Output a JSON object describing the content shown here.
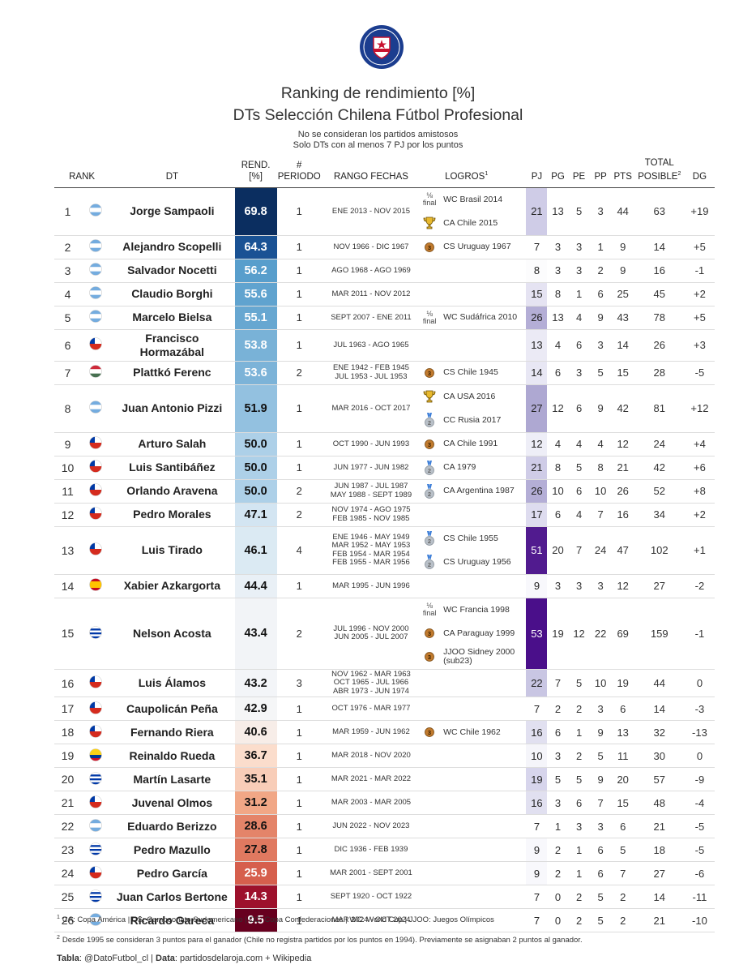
{
  "header": {
    "title": [
      "Ranking de rendimiento [%]",
      "DTs Selección Chilena Fútbol Profesional"
    ],
    "notes": [
      "No se consideran los partidos amistosos",
      "Solo DTs con al menos 7 PJ por los puntos"
    ]
  },
  "table": {
    "columns": [
      {
        "lines": [
          "RANK"
        ]
      },
      {
        "lines": [
          "DT"
        ]
      },
      {
        "lines": [
          "REND.",
          "[%]"
        ]
      },
      {
        "lines": [
          "#",
          "PERIODO"
        ]
      },
      {
        "lines": [
          "RANGO FECHAS"
        ]
      },
      {
        "lines": [
          "LOGROS"
        ],
        "sup": "1"
      },
      {
        "lines": [
          "PJ"
        ]
      },
      {
        "lines": [
          "PG"
        ]
      },
      {
        "lines": [
          "PE"
        ]
      },
      {
        "lines": [
          "PP"
        ]
      },
      {
        "lines": [
          "PTS"
        ]
      },
      {
        "lines": [
          "TOTAL",
          "POSIBLE"
        ],
        "sup": "2"
      },
      {
        "lines": [
          "DG"
        ]
      }
    ],
    "rows": [
      {
        "rank": 1,
        "flag": "ar",
        "dt": "Jorge Sampaoli",
        "rend": "69.8",
        "periodo": 1,
        "fechas": [
          "ENE 2013 - NOV 2015"
        ],
        "logros": [
          {
            "badge": [
              "⅛",
              "final"
            ],
            "text": "WC Brasil 2014"
          },
          {
            "place": 1,
            "text": "CA Chile 2015"
          }
        ],
        "pj": 21,
        "pg": 13,
        "pe": 5,
        "pp": 3,
        "pts": 44,
        "total": 63,
        "dg": "+19"
      },
      {
        "rank": 2,
        "flag": "ar",
        "dt": "Alejandro Scopelli",
        "rend": "64.3",
        "periodo": 1,
        "fechas": [
          "NOV 1966 - DIC 1967"
        ],
        "logros": [
          {
            "place": 3,
            "text": "CS Uruguay 1967"
          }
        ],
        "pj": 7,
        "pg": 3,
        "pe": 3,
        "pp": 1,
        "pts": 9,
        "total": 14,
        "dg": "+5"
      },
      {
        "rank": 3,
        "flag": "ar",
        "dt": "Salvador Nocetti",
        "rend": "56.2",
        "periodo": 1,
        "fechas": [
          "AGO 1968 - AGO 1969"
        ],
        "logros": [],
        "pj": 8,
        "pg": 3,
        "pe": 3,
        "pp": 2,
        "pts": 9,
        "total": 16,
        "dg": "-1"
      },
      {
        "rank": 4,
        "flag": "ar",
        "dt": "Claudio Borghi",
        "rend": "55.6",
        "periodo": 1,
        "fechas": [
          "MAR 2011 - NOV 2012"
        ],
        "logros": [],
        "pj": 15,
        "pg": 8,
        "pe": 1,
        "pp": 6,
        "pts": 25,
        "total": 45,
        "dg": "+2"
      },
      {
        "rank": 5,
        "flag": "ar",
        "dt": "Marcelo Bielsa",
        "rend": "55.1",
        "periodo": 1,
        "fechas": [
          "SEPT 2007 - ENE 2011"
        ],
        "logros": [
          {
            "badge": [
              "⅛",
              "final"
            ],
            "text": "WC Sudáfrica 2010"
          }
        ],
        "pj": 26,
        "pg": 13,
        "pe": 4,
        "pp": 9,
        "pts": 43,
        "total": 78,
        "dg": "+5"
      },
      {
        "rank": 6,
        "flag": "cl",
        "dt": "Francisco Hormazábal",
        "rend": "53.8",
        "periodo": 1,
        "fechas": [
          "JUL 1963 - AGO 1965"
        ],
        "logros": [],
        "pj": 13,
        "pg": 4,
        "pe": 6,
        "pp": 3,
        "pts": 14,
        "total": 26,
        "dg": "+3"
      },
      {
        "rank": 7,
        "flag": "hu",
        "dt": "Plattkó Ferenc",
        "rend": "53.6",
        "periodo": 2,
        "fechas": [
          "ENE 1942 - FEB 1945",
          "JUL 1953 - JUL 1953"
        ],
        "logros": [
          {
            "place": 3,
            "text": "CS Chile 1945"
          }
        ],
        "pj": 14,
        "pg": 6,
        "pe": 3,
        "pp": 5,
        "pts": 15,
        "total": 28,
        "dg": "-5"
      },
      {
        "rank": 8,
        "flag": "ar",
        "dt": "Juan Antonio Pizzi",
        "rend": "51.9",
        "periodo": 1,
        "fechas": [
          "MAR 2016 - OCT 2017"
        ],
        "logros": [
          {
            "place": 1,
            "text": "CA USA 2016"
          },
          {
            "place": 2,
            "text": "CC Rusia 2017"
          }
        ],
        "pj": 27,
        "pg": 12,
        "pe": 6,
        "pp": 9,
        "pts": 42,
        "total": 81,
        "dg": "+12"
      },
      {
        "rank": 9,
        "flag": "cl",
        "dt": "Arturo Salah",
        "rend": "50.0",
        "periodo": 1,
        "fechas": [
          "OCT 1990 - JUN 1993"
        ],
        "logros": [
          {
            "place": 3,
            "text": "CA Chile 1991"
          }
        ],
        "pj": 12,
        "pg": 4,
        "pe": 4,
        "pp": 4,
        "pts": 12,
        "total": 24,
        "dg": "+4"
      },
      {
        "rank": 10,
        "flag": "cl",
        "dt": "Luis Santibáñez",
        "rend": "50.0",
        "periodo": 1,
        "fechas": [
          "JUN 1977 - JUN 1982"
        ],
        "logros": [
          {
            "place": 2,
            "text": "CA 1979"
          }
        ],
        "pj": 21,
        "pg": 8,
        "pe": 5,
        "pp": 8,
        "pts": 21,
        "total": 42,
        "dg": "+6"
      },
      {
        "rank": 11,
        "flag": "cl",
        "dt": "Orlando Aravena",
        "rend": "50.0",
        "periodo": 2,
        "fechas": [
          "JUN 1987 - JUL 1987",
          "MAY 1988 - SEPT 1989"
        ],
        "logros": [
          {
            "place": 2,
            "text": "CA Argentina 1987"
          }
        ],
        "pj": 26,
        "pg": 10,
        "pe": 6,
        "pp": 10,
        "pts": 26,
        "total": 52,
        "dg": "+8"
      },
      {
        "rank": 12,
        "flag": "cl",
        "dt": "Pedro Morales",
        "rend": "47.1",
        "periodo": 2,
        "fechas": [
          "NOV 1974 - AGO 1975",
          "FEB 1985 - NOV 1985"
        ],
        "logros": [],
        "pj": 17,
        "pg": 6,
        "pe": 4,
        "pp": 7,
        "pts": 16,
        "total": 34,
        "dg": "+2"
      },
      {
        "rank": 13,
        "flag": "cl",
        "dt": "Luis Tirado",
        "rend": "46.1",
        "periodo": 4,
        "fechas": [
          "ENE 1946 - MAY 1949",
          "MAR 1952 - MAY 1953",
          "FEB 1954 - MAR 1954",
          "FEB 1955 - MAR 1956"
        ],
        "logros": [
          {
            "place": 2,
            "text": "CS Chile 1955"
          },
          {
            "place": 2,
            "text": "CS Uruguay 1956"
          }
        ],
        "pj": 51,
        "pg": 20,
        "pe": 7,
        "pp": 24,
        "pts": 47,
        "total": 102,
        "dg": "+1"
      },
      {
        "rank": 14,
        "flag": "es",
        "dt": "Xabier Azkargorta",
        "rend": "44.4",
        "periodo": 1,
        "fechas": [
          "MAR 1995 - JUN 1996"
        ],
        "logros": [],
        "pj": 9,
        "pg": 3,
        "pe": 3,
        "pp": 3,
        "pts": 12,
        "total": 27,
        "dg": "-2"
      },
      {
        "rank": 15,
        "flag": "uy",
        "dt": "Nelson Acosta",
        "rend": "43.4",
        "periodo": 2,
        "fechas": [
          "JUL 1996 - NOV 2000",
          "JUN 2005 - JUL 2007"
        ],
        "logros": [
          {
            "badge": [
              "⅛",
              "final"
            ],
            "text": "WC Francia 1998"
          },
          {
            "place": 3,
            "text": "CA Paraguay 1999"
          },
          {
            "place": 3,
            "text": "JJOO Sidney 2000 (sub23)"
          }
        ],
        "pj": 53,
        "pg": 19,
        "pe": 12,
        "pp": 22,
        "pts": 69,
        "total": 159,
        "dg": "-1"
      },
      {
        "rank": 16,
        "flag": "cl",
        "dt": "Luis Álamos",
        "rend": "43.2",
        "periodo": 3,
        "fechas": [
          "NOV 1962 - MAR 1963",
          "OCT 1965 - JUL 1966",
          "ABR 1973 - JUN 1974"
        ],
        "logros": [],
        "pj": 22,
        "pg": 7,
        "pe": 5,
        "pp": 10,
        "pts": 19,
        "total": 44,
        "dg": "0"
      },
      {
        "rank": 17,
        "flag": "cl",
        "dt": "Caupolicán Peña",
        "rend": "42.9",
        "periodo": 1,
        "fechas": [
          "OCT 1976 - MAR 1977"
        ],
        "logros": [],
        "pj": 7,
        "pg": 2,
        "pe": 2,
        "pp": 3,
        "pts": 6,
        "total": 14,
        "dg": "-3"
      },
      {
        "rank": 18,
        "flag": "cl",
        "dt": "Fernando Riera",
        "rend": "40.6",
        "periodo": 1,
        "fechas": [
          "MAR 1959 - JUN 1962"
        ],
        "logros": [
          {
            "place": 3,
            "text": "WC Chile 1962"
          }
        ],
        "pj": 16,
        "pg": 6,
        "pe": 1,
        "pp": 9,
        "pts": 13,
        "total": 32,
        "dg": "-13"
      },
      {
        "rank": 19,
        "flag": "co",
        "dt": "Reinaldo Rueda",
        "rend": "36.7",
        "periodo": 1,
        "fechas": [
          "MAR 2018 - NOV 2020"
        ],
        "logros": [],
        "pj": 10,
        "pg": 3,
        "pe": 2,
        "pp": 5,
        "pts": 11,
        "total": 30,
        "dg": "0"
      },
      {
        "rank": 20,
        "flag": "uy",
        "dt": "Martín Lasarte",
        "rend": "35.1",
        "periodo": 1,
        "fechas": [
          "MAR 2021 - MAR 2022"
        ],
        "logros": [],
        "pj": 19,
        "pg": 5,
        "pe": 5,
        "pp": 9,
        "pts": 20,
        "total": 57,
        "dg": "-9"
      },
      {
        "rank": 21,
        "flag": "cl",
        "dt": "Juvenal Olmos",
        "rend": "31.2",
        "periodo": 1,
        "fechas": [
          "MAR 2003 - MAR 2005"
        ],
        "logros": [],
        "pj": 16,
        "pg": 3,
        "pe": 6,
        "pp": 7,
        "pts": 15,
        "total": 48,
        "dg": "-4"
      },
      {
        "rank": 22,
        "flag": "ar",
        "dt": "Eduardo Berizzo",
        "rend": "28.6",
        "periodo": 1,
        "fechas": [
          "JUN 2022 - NOV 2023"
        ],
        "logros": [],
        "pj": 7,
        "pg": 1,
        "pe": 3,
        "pp": 3,
        "pts": 6,
        "total": 21,
        "dg": "-5"
      },
      {
        "rank": 23,
        "flag": "uy",
        "dt": "Pedro Mazullo",
        "rend": "27.8",
        "periodo": 1,
        "fechas": [
          "DIC 1936 - FEB 1939"
        ],
        "logros": [],
        "pj": 9,
        "pg": 2,
        "pe": 1,
        "pp": 6,
        "pts": 5,
        "total": 18,
        "dg": "-5"
      },
      {
        "rank": 24,
        "flag": "cl",
        "dt": "Pedro García",
        "rend": "25.9",
        "periodo": 1,
        "fechas": [
          "MAR 2001 - SEPT 2001"
        ],
        "logros": [],
        "pj": 9,
        "pg": 2,
        "pe": 1,
        "pp": 6,
        "pts": 7,
        "total": 27,
        "dg": "-6"
      },
      {
        "rank": 25,
        "flag": "uy",
        "dt": "Juan Carlos Bertone",
        "rend": "14.3",
        "periodo": 1,
        "fechas": [
          "SEPT 1920 - OCT 1922"
        ],
        "logros": [],
        "pj": 7,
        "pg": 0,
        "pe": 2,
        "pp": 5,
        "pts": 2,
        "total": 14,
        "dg": "-11"
      },
      {
        "rank": 26,
        "flag": "ar",
        "dt": "Ricardo Gareca",
        "rend": "9.5",
        "periodo": 1,
        "fechas": [
          "MAR 2024 - OCT 2024"
        ],
        "logros": [],
        "pj": 7,
        "pg": 0,
        "pe": 2,
        "pp": 5,
        "pts": 2,
        "total": 21,
        "dg": "-10"
      }
    ]
  },
  "footer": {
    "notes": [
      {
        "sup": "1",
        "text": "CA: Copa América | CS: Campeonato Sudamericano | CC: Copa Confederaciones | WC: World Cup | JJOO: Juegos Olímpicos"
      },
      {
        "sup": "2",
        "text": "Desde 1995 se consideran 3 puntos para el ganador (Chile no registra partidos por los puntos en 1994). Previamente se asignaban 2 puntos al ganador."
      }
    ],
    "credits": [
      {
        "bold": true,
        "text": "Tabla"
      },
      {
        "bold": false,
        "text": ": @DatoFutbol_cl | "
      },
      {
        "bold": true,
        "text": "Data"
      },
      {
        "bold": false,
        "text": ": partidosdelaroja.com + Wikipedia"
      }
    ]
  }
}
